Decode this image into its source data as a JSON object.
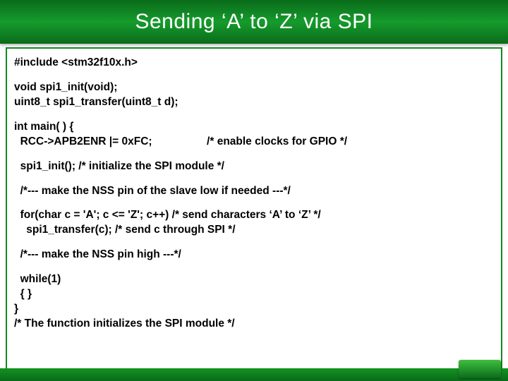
{
  "header": {
    "title": "Sending ‘A’ to ‘Z’ via SPI"
  },
  "code": {
    "lines": [
      "#include <stm32f10x.h>",
      "",
      "void spi1_init(void);",
      "uint8_t spi1_transfer(uint8_t d);",
      "",
      "int main( ) {",
      "  RCC->APB2ENR |= 0xFC;                  /* enable clocks for GPIO */",
      "",
      "  spi1_init(); /* initialize the SPI module */",
      "",
      "  /*--- make the NSS pin of the slave low if needed ---*/",
      "",
      "  for(char c = 'A'; c <= 'Z'; c++) /* send characters ‘A’ to ‘Z’ */",
      "    spi1_transfer(c); /* send c through SPI */",
      "",
      "  /*--- make the NSS pin high ---*/",
      "",
      "  while(1)",
      "  { }",
      "}",
      "/* The function initializes the SPI module */"
    ]
  },
  "colors": {
    "header_gradient_top": "#0a6b1a",
    "header_gradient_mid": "#159b2c",
    "border": "#13891f",
    "text": "#000000",
    "title_text": "#ffffff"
  }
}
